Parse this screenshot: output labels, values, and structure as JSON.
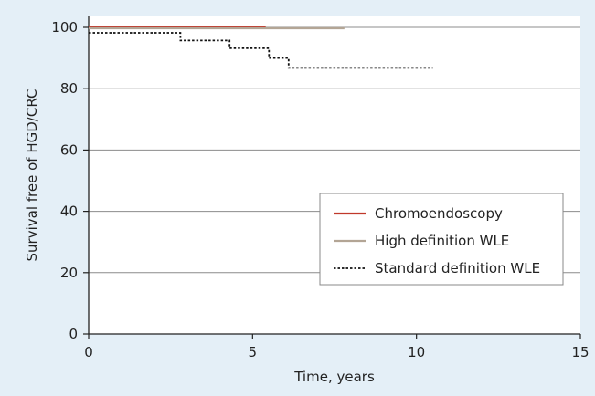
{
  "chart_data": {
    "type": "line",
    "title": "",
    "xlabel": "Time, years",
    "ylabel": "Survival free of HGD/CRC",
    "xlim": [
      0,
      15
    ],
    "ylim": [
      0,
      100
    ],
    "x_ticks": [
      0,
      5,
      10,
      15
    ],
    "y_ticks": [
      0,
      20,
      40,
      60,
      80,
      100
    ],
    "grid": "horizontal",
    "legend_position": "lower-right",
    "series": [
      {
        "name": "Chromoendoscopy",
        "color": "#c0392b",
        "style": "solid",
        "step": true,
        "points": [
          [
            0,
            100
          ],
          [
            5.4,
            100
          ]
        ]
      },
      {
        "name": "High definition WLE",
        "color": "#b3a595",
        "style": "solid",
        "step": true,
        "points": [
          [
            0,
            99.7
          ],
          [
            7.8,
            99.7
          ]
        ]
      },
      {
        "name": "Standard definition WLE",
        "color": "#111111",
        "style": "dotted",
        "step": true,
        "points": [
          [
            0,
            98.2
          ],
          [
            2.8,
            98.2
          ],
          [
            2.8,
            95.7
          ],
          [
            4.3,
            95.7
          ],
          [
            4.3,
            93.2
          ],
          [
            5.5,
            93.2
          ],
          [
            5.5,
            90
          ],
          [
            6.1,
            90
          ],
          [
            6.1,
            86.8
          ],
          [
            10.5,
            86.8
          ]
        ]
      }
    ]
  }
}
